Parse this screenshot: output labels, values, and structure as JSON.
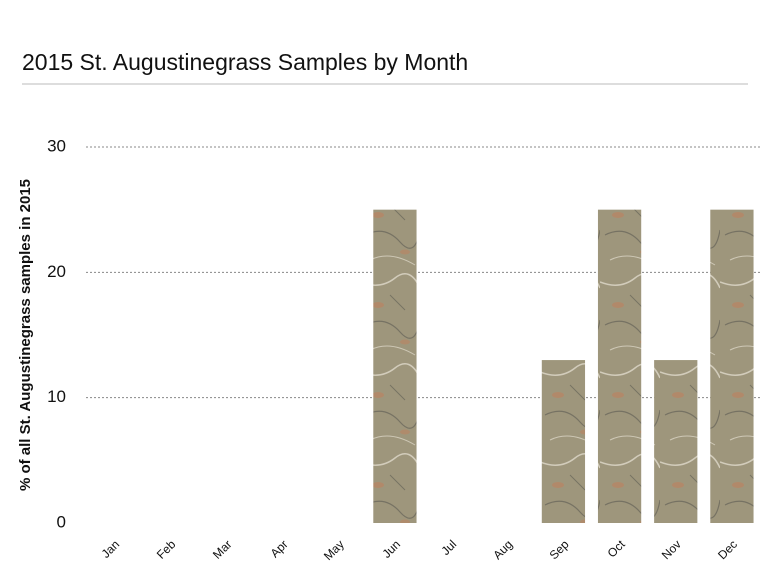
{
  "chart_data": {
    "type": "bar",
    "title": "2015 St. Augustinegrass Samples by Month",
    "y_label": "% of all St. Augustinegrass samples in 2015",
    "categories": [
      "Jan",
      "Feb",
      "Mar",
      "Apr",
      "May",
      "Jun",
      "Jul",
      "Aug",
      "Sep",
      "Oct",
      "Nov",
      "Dec"
    ],
    "values": [
      0,
      0,
      0,
      0,
      0,
      25,
      0,
      0,
      13,
      25,
      13,
      25
    ],
    "color": "#a89c80",
    "ylim": [
      0,
      30
    ],
    "yticks": [
      0,
      10,
      20,
      30
    ],
    "grid": true
  }
}
